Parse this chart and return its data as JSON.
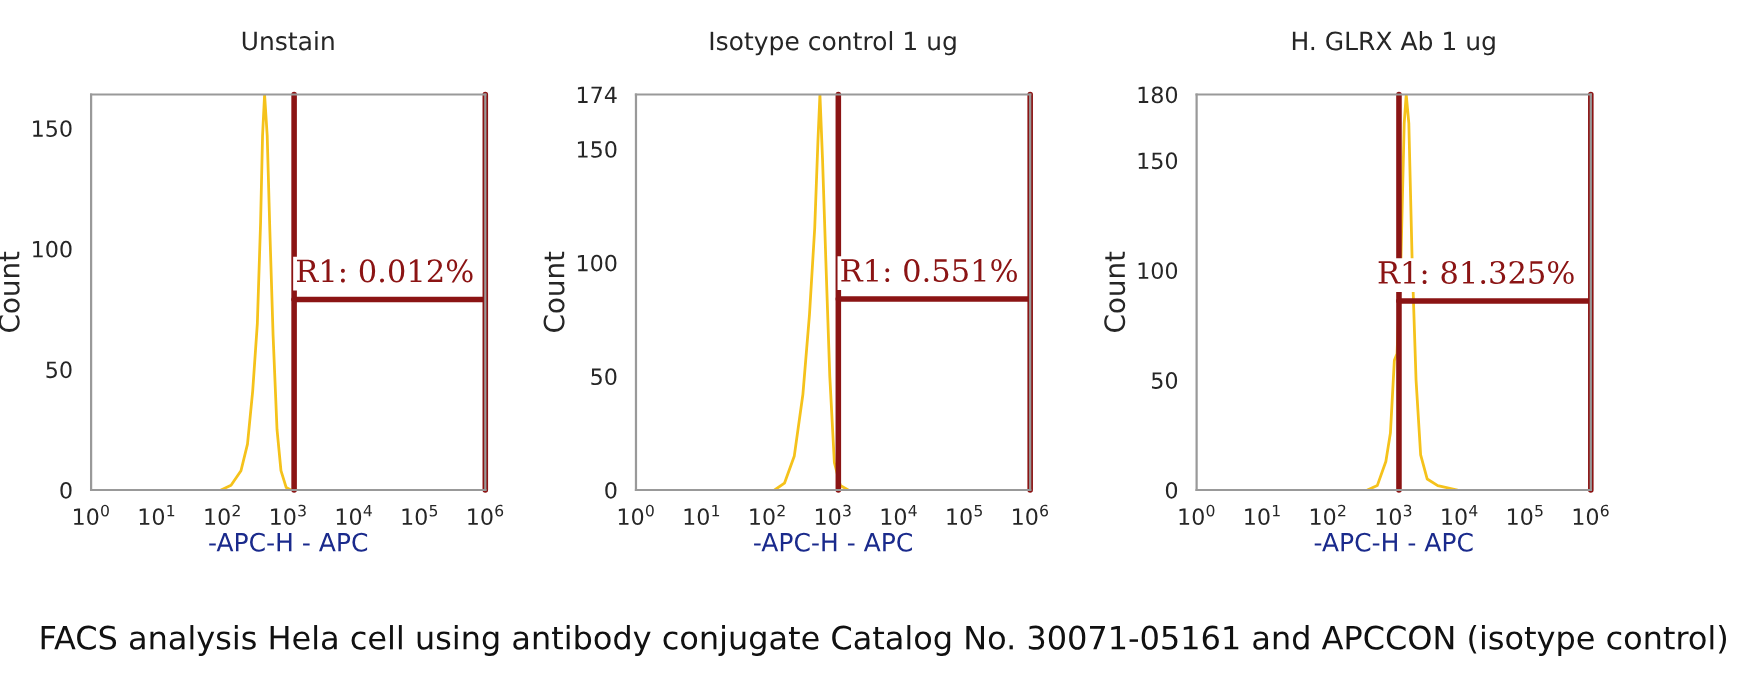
{
  "chart_data": [
    {
      "type": "line",
      "title": "Unstain",
      "xlabel": "-APC-H - APC",
      "ylabel": "Count",
      "log": "x",
      "grid": false,
      "legend": false,
      "marker": "none",
      "line_style": "solid",
      "xlim": [
        1,
        1000000
      ],
      "ylim": [
        0,
        164
      ],
      "xticks": [
        {
          "value": 1,
          "label": "10$^{0}$"
        },
        {
          "value": 10,
          "label": "10$^{1}$"
        },
        {
          "value": 100,
          "label": "10$^{2}$"
        },
        {
          "value": 1000,
          "label": "10$^{3}$"
        },
        {
          "value": 10000,
          "label": "10$^{4}$"
        },
        {
          "value": 100000,
          "label": "10$^{5}$"
        },
        {
          "value": 1000000,
          "label": "10$^{6}$"
        }
      ],
      "yticks": [
        0,
        50,
        100,
        150
      ],
      "series": [
        {
          "color": "#f5c21b",
          "x": [
            95,
            135,
            191,
            240,
            288,
            339,
            380,
            407,
            437,
            479,
            525,
            589,
            676,
            776,
            933,
            1096
          ],
          "values": [
            0,
            2,
            8,
            19,
            41,
            69,
            111,
            147,
            164,
            147,
            108,
            64,
            25,
            8,
            1,
            0
          ]
        },
        {
          "color": "#8b1414",
          "x": [
            1230,
            1000000
          ],
          "values": [
            79,
            79
          ]
        }
      ],
      "ref_lines": [
        {
          "axis": "x",
          "value": 1230,
          "color": "#8b1414"
        },
        {
          "axis": "x",
          "value": 1000000,
          "color": "#8b1414"
        }
      ],
      "annotations": [
        {
          "text": "R1: 0.012%",
          "x": 29500,
          "y": 79
        },
        "FACS analysis Hela cell using antibody conjugate Catalog No. 30071-05161 and APCCON (isotype control)"
      ]
    },
    {
      "type": "line",
      "title": "Isotype control 1 ug",
      "xlabel": "-APC-H - APC",
      "ylabel": "Count",
      "log": "x",
      "grid": false,
      "legend": false,
      "marker": "none",
      "line_style": "solid",
      "xlim": [
        1,
        1000000
      ],
      "ylim": [
        0,
        174
      ],
      "xticks": [
        {
          "value": 1,
          "label": "10$^{0}$"
        },
        {
          "value": 10,
          "label": "10$^{1}$"
        },
        {
          "value": 100,
          "label": "10$^{2}$"
        },
        {
          "value": 1000,
          "label": "10$^{3}$"
        },
        {
          "value": 10000,
          "label": "10$^{4}$"
        },
        {
          "value": 100000,
          "label": "10$^{5}$"
        },
        {
          "value": 1000000,
          "label": "10$^{6}$"
        }
      ],
      "yticks": [
        0,
        50,
        100,
        150,
        174
      ],
      "series": [
        {
          "color": "#f5c21b",
          "x": [
            129,
            182,
            257,
            347,
            437,
            525,
            589,
            631,
            692,
            776,
            891,
            1047,
            1288,
            1698
          ],
          "values": [
            0,
            3,
            15,
            42,
            77,
            115,
            154,
            174,
            145,
            101,
            50,
            12,
            2,
            0
          ]
        },
        {
          "color": "#8b1414",
          "x": [
            1202,
            1000000
          ],
          "values": [
            84,
            84
          ]
        }
      ],
      "ref_lines": [
        {
          "axis": "x",
          "value": 1202,
          "color": "#8b1414"
        },
        {
          "axis": "x",
          "value": 1000000,
          "color": "#8b1414"
        }
      ],
      "annotations": [
        {
          "text": "R1: 0.551%",
          "x": 29000,
          "y": 84
        }
      ]
    },
    {
      "type": "line",
      "title": "H. GLRX Ab 1 ug",
      "xlabel": "-APC-H - APC",
      "ylabel": "Count",
      "log": "x",
      "grid": false,
      "legend": false,
      "marker": "none",
      "line_style": "solid",
      "xlim": [
        1,
        1000000
      ],
      "ylim": [
        0,
        180
      ],
      "xticks": [
        {
          "value": 1,
          "label": "10$^{0}$"
        },
        {
          "value": 10,
          "label": "10$^{1}$"
        },
        {
          "value": 100,
          "label": "10$^{2}$"
        },
        {
          "value": 1000,
          "label": "10$^{3}$"
        },
        {
          "value": 10000,
          "label": "10$^{4}$"
        },
        {
          "value": 100000,
          "label": "10$^{5}$"
        },
        {
          "value": 1000000,
          "label": "10$^{6}$"
        }
      ],
      "yticks": [
        0,
        50,
        100,
        150,
        180
      ],
      "series": [
        {
          "color": "#f5c21b",
          "x": [
            398,
            562,
            759,
            891,
            1023,
            1122,
            1288,
            1445,
            1549,
            1698,
            1905,
            2188,
            2570,
            3236,
            4677,
            9333
          ],
          "values": [
            0,
            2,
            13,
            26,
            59,
            62,
            105,
            167,
            180,
            167,
            105,
            50,
            16,
            5,
            2,
            0
          ]
        },
        {
          "color": "#8b1414",
          "x": [
            1202,
            1000000
          ],
          "values": [
            86,
            86
          ]
        }
      ],
      "ref_lines": [
        {
          "axis": "x",
          "value": 1202,
          "color": "#8b1414"
        },
        {
          "axis": "x",
          "value": 1000000,
          "color": "#8b1414"
        }
      ],
      "annotations": [
        {
          "text": "R1: 81.325%",
          "x": 18000,
          "y": 86
        }
      ]
    }
  ]
}
